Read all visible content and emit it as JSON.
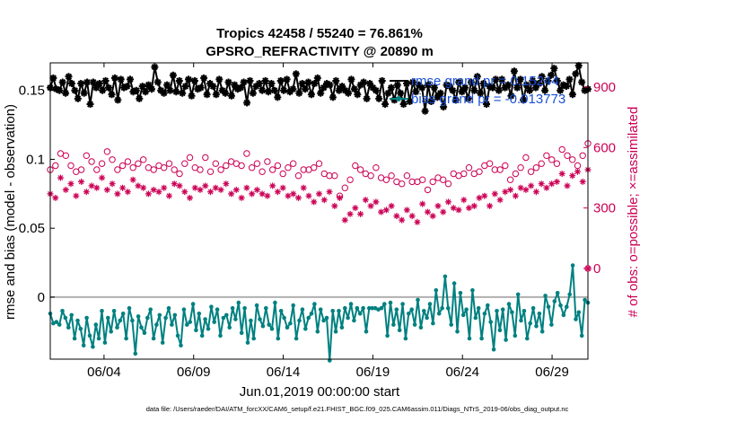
{
  "chart_data": {
    "type": "line",
    "title_line1": "Tropics 42458 / 55240 = 76.861%",
    "title_line2": "GPSRO_REFRACTIVITY @ 20890 m",
    "xlabel": "Jun.01,2019 00:00:00 start",
    "ylabel": "rmse and bias (model - observation)",
    "ylabel_right": "# of obs: o=possible; ×=assimilated",
    "x_range_days": [
      1.0,
      31.0
    ],
    "y_left_range": [
      -0.045,
      0.17
    ],
    "y_right_range": [
      -450,
      1020
    ],
    "x_ticks": [
      {
        "day": 4,
        "label": "06/04"
      },
      {
        "day": 9,
        "label": "06/09"
      },
      {
        "day": 14,
        "label": "06/14"
      },
      {
        "day": 19,
        "label": "06/19"
      },
      {
        "day": 24,
        "label": "06/24"
      },
      {
        "day": 29,
        "label": "06/29"
      }
    ],
    "y_left_ticks": [
      {
        "v": 0,
        "label": "0"
      },
      {
        "v": 0.05,
        "label": "0.05"
      },
      {
        "v": 0.1,
        "label": "0.1"
      },
      {
        "v": 0.15,
        "label": "0.15"
      }
    ],
    "y_right_ticks": [
      {
        "v": 0,
        "label": "0"
      },
      {
        "v": 300,
        "label": "300"
      },
      {
        "v": 600,
        "label": "600"
      },
      {
        "v": 900,
        "label": "900"
      }
    ],
    "legend": [
      {
        "name": "rmse grand pr = 0.15244",
        "color": "#000000"
      },
      {
        "name": "bias grand pr = -0.013773",
        "color": "#008080"
      }
    ],
    "series": [
      {
        "name": "rmse",
        "axis": "left",
        "color": "#000000",
        "marker": "star",
        "values": [
          0.152,
          0.159,
          0.151,
          0.15,
          0.156,
          0.148,
          0.16,
          0.155,
          0.15,
          0.144,
          0.155,
          0.148,
          0.156,
          0.14,
          0.156,
          0.152,
          0.155,
          0.15,
          0.157,
          0.152,
          0.147,
          0.159,
          0.143,
          0.158,
          0.152,
          0.153,
          0.158,
          0.149,
          0.15,
          0.144,
          0.153,
          0.149,
          0.154,
          0.151,
          0.167,
          0.156,
          0.15,
          0.148,
          0.154,
          0.15,
          0.161,
          0.149,
          0.157,
          0.148,
          0.153,
          0.158,
          0.146,
          0.157,
          0.151,
          0.152,
          0.159,
          0.147,
          0.155,
          0.153,
          0.147,
          0.158,
          0.15,
          0.148,
          0.156,
          0.146,
          0.154,
          0.151,
          0.152,
          0.156,
          0.141,
          0.157,
          0.148,
          0.153,
          0.155,
          0.15,
          0.157,
          0.149,
          0.155,
          0.15,
          0.145,
          0.157,
          0.15,
          0.158,
          0.149,
          0.151,
          0.162,
          0.148,
          0.155,
          0.151,
          0.156,
          0.147,
          0.155,
          0.159,
          0.148,
          0.152,
          0.155,
          0.154,
          0.145,
          0.157,
          0.15,
          0.153,
          0.15,
          0.148,
          0.158,
          0.151,
          0.147,
          0.154,
          0.156,
          0.144,
          0.155,
          0.152,
          0.15,
          0.144,
          0.157,
          0.14,
          0.148,
          0.152,
          0.143,
          0.154,
          0.148,
          0.14,
          0.155,
          0.142,
          0.156,
          0.149,
          0.154,
          0.152,
          0.135,
          0.154,
          0.142,
          0.152,
          0.145,
          0.148,
          0.138,
          0.154,
          0.153,
          0.15,
          0.143,
          0.156,
          0.149,
          0.152,
          0.144,
          0.156,
          0.15,
          0.16,
          0.148,
          0.155,
          0.14,
          0.153,
          0.152,
          0.158,
          0.15,
          0.158,
          0.152,
          0.154,
          0.146,
          0.164,
          0.152,
          0.158,
          0.143,
          0.154,
          0.15,
          0.157,
          0.152,
          0.155,
          0.16,
          0.15,
          0.157,
          0.161,
          0.166,
          0.157,
          0.15,
          0.154,
          0.153,
          0.158,
          0.147,
          0.162,
          0.168,
          0.156,
          0.15,
          0.151
        ]
      },
      {
        "name": "bias",
        "axis": "left",
        "color": "#008080",
        "marker": "dot",
        "values": [
          -0.012,
          -0.019,
          -0.018,
          -0.02,
          -0.01,
          -0.015,
          -0.022,
          -0.013,
          -0.03,
          -0.017,
          -0.023,
          -0.035,
          -0.015,
          -0.028,
          -0.036,
          -0.02,
          -0.03,
          -0.01,
          -0.033,
          -0.015,
          -0.025,
          -0.01,
          -0.022,
          -0.017,
          -0.012,
          -0.03,
          -0.008,
          -0.017,
          -0.041,
          -0.014,
          -0.022,
          -0.026,
          -0.015,
          -0.009,
          -0.03,
          -0.02,
          -0.013,
          -0.033,
          -0.015,
          -0.008,
          -0.02,
          -0.013,
          -0.028,
          -0.035,
          -0.009,
          -0.02,
          -0.018,
          -0.005,
          -0.024,
          -0.012,
          -0.028,
          -0.016,
          -0.023,
          -0.007,
          -0.018,
          -0.009,
          -0.028,
          -0.015,
          -0.013,
          -0.022,
          -0.008,
          -0.016,
          -0.004,
          -0.026,
          -0.008,
          -0.033,
          -0.017,
          -0.03,
          -0.006,
          -0.016,
          -0.021,
          -0.008,
          -0.02,
          -0.023,
          -0.004,
          -0.03,
          -0.01,
          -0.015,
          -0.022,
          -0.019,
          -0.006,
          -0.03,
          -0.017,
          -0.009,
          -0.023,
          -0.015,
          -0.012,
          -0.005,
          -0.025,
          -0.009,
          -0.017,
          -0.015,
          -0.046,
          -0.01,
          -0.025,
          -0.01,
          -0.022,
          -0.008,
          -0.015,
          -0.005,
          -0.017,
          -0.008,
          -0.012,
          -0.008,
          -0.025,
          -0.008,
          -0.008,
          -0.008,
          -0.009,
          -0.008,
          -0.005,
          -0.028,
          -0.004,
          -0.02,
          -0.009,
          -0.024,
          -0.005,
          -0.03,
          -0.012,
          -0.009,
          -0.02,
          -0.002,
          -0.022,
          -0.01,
          -0.015,
          -0.005,
          -0.019,
          0.005,
          -0.012,
          -0.008,
          0.015,
          -0.008,
          -0.02,
          0.01,
          -0.025,
          0.003,
          -0.013,
          -0.009,
          -0.03,
          0.005,
          -0.015,
          -0.008,
          -0.03,
          -0.012,
          -0.006,
          -0.018,
          -0.038,
          -0.01,
          -0.024,
          -0.009,
          -0.031,
          -0.005,
          -0.011,
          -0.028,
          0.002,
          -0.017,
          -0.01,
          -0.03,
          -0.019,
          -0.008,
          -0.021,
          -0.012,
          -0.025,
          0.001,
          -0.007,
          -0.02,
          -0.003,
          0.003,
          -0.006,
          -0.013,
          -0.007,
          0.002,
          0.023,
          -0.016,
          -0.011,
          -0.028,
          -0.002,
          -0.004
        ]
      },
      {
        "name": "possible",
        "axis": "right",
        "color": "#cc0055",
        "marker": "circle",
        "values": [
          490,
          510,
          570,
          560,
          510,
          480,
          490,
          560,
          530,
          490,
          520,
          580,
          540,
          490,
          510,
          530,
          500,
          520,
          540,
          500,
          490,
          510,
          500,
          520,
          490,
          470,
          520,
          550,
          500,
          490,
          550,
          480,
          520,
          490,
          510,
          530,
          520,
          510,
          570,
          500,
          520,
          480,
          530,
          490,
          510,
          470,
          500,
          520,
          460,
          490,
          490,
          500,
          520,
          470,
          460,
          460,
          360,
          400,
          440,
          510,
          490,
          470,
          460,
          500,
          450,
          440,
          460,
          430,
          420,
          460,
          430,
          430,
          440,
          390,
          430,
          450,
          440,
          420,
          470,
          460,
          470,
          500,
          470,
          480,
          510,
          520,
          490,
          490,
          510,
          440,
          470,
          500,
          550,
          480,
          500,
          520,
          560,
          540,
          520,
          590,
          560,
          540,
          510,
          560,
          620
        ]
      },
      {
        "name": "assimilated",
        "axis": "right",
        "color": "#cc0055",
        "marker": "star",
        "values": [
          370,
          350,
          450,
          390,
          420,
          360,
          430,
          380,
          410,
          400,
          450,
          390,
          420,
          370,
          400,
          380,
          440,
          410,
          400,
          370,
          390,
          380,
          400,
          360,
          420,
          410,
          380,
          350,
          400,
          390,
          410,
          380,
          400,
          390,
          420,
          370,
          390,
          350,
          400,
          370,
          390,
          370,
          360,
          410,
          380,
          400,
          360,
          370,
          350,
          400,
          360,
          330,
          370,
          340,
          380,
          310,
          350,
          240,
          270,
          300,
          270,
          340,
          310,
          330,
          280,
          290,
          310,
          260,
          240,
          290,
          260,
          230,
          320,
          280,
          260,
          310,
          280,
          330,
          300,
          290,
          340,
          300,
          310,
          350,
          360,
          310,
          370,
          340,
          380,
          390,
          360,
          400,
          390,
          410,
          380,
          420,
          400,
          420,
          430,
          470,
          410,
          460,
          480,
          430,
          490
        ]
      }
    ]
  },
  "footer": "data file: /Users/raeder/DAI/ATM_forcXX/CAM6_setup/f.e21.FHIST_BGC.f09_025.CAM6assim.011/Diags_NTrS_2019-06/obs_diag_output.nc"
}
